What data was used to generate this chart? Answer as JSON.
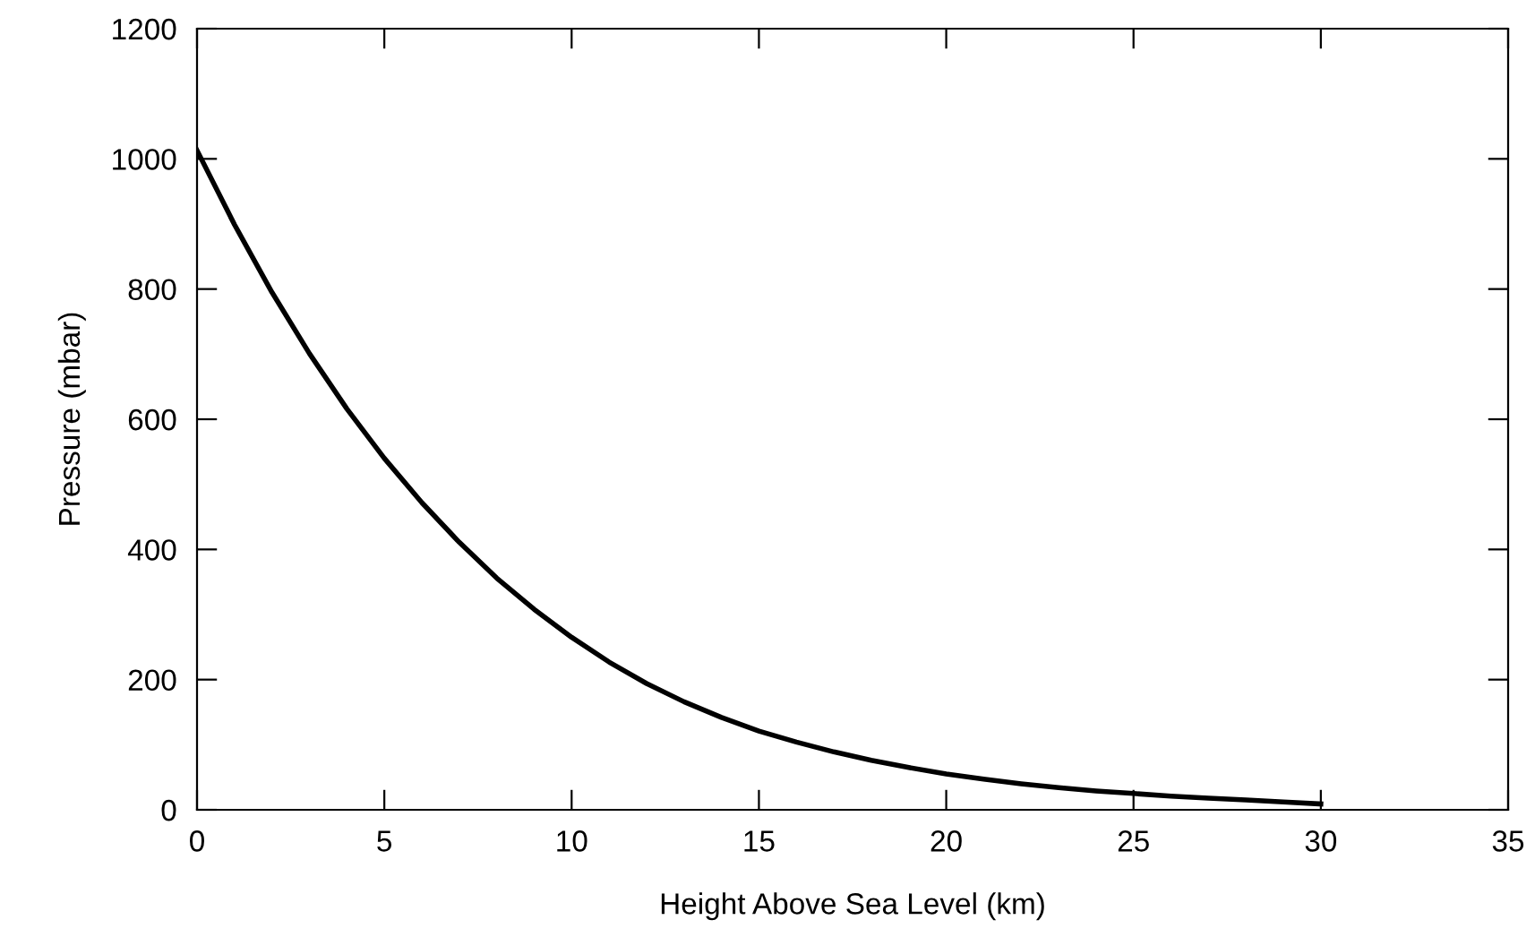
{
  "chart_data": {
    "type": "line",
    "xlabel": "Height Above Sea Level (km)",
    "ylabel": "Pressure (mbar)",
    "x": [
      0,
      1,
      2,
      3,
      4,
      5,
      6,
      7,
      8,
      9,
      10,
      11,
      12,
      13,
      14,
      15,
      16,
      17,
      18,
      19,
      20,
      21,
      22,
      23,
      24,
      25,
      26,
      27,
      28,
      29,
      30
    ],
    "series": [
      {
        "color": "#000000",
        "values": [
          1013,
          899,
          795,
          701,
          616,
          540,
          472,
          411,
          356,
          308,
          265,
          227,
          194,
          166,
          142,
          121,
          104,
          89,
          76,
          65,
          55,
          47,
          40,
          34,
          29,
          25,
          21,
          18,
          15,
          12,
          9
        ]
      }
    ],
    "xlim": [
      0,
      35
    ],
    "xticks": [
      0,
      5,
      10,
      15,
      20,
      25,
      30,
      35
    ],
    "ylim": [
      0,
      1200
    ],
    "yticks": [
      0,
      200,
      400,
      600,
      800,
      1000,
      1200
    ],
    "grid": false,
    "legend": false,
    "marker": "none",
    "line_style": "solid"
  }
}
